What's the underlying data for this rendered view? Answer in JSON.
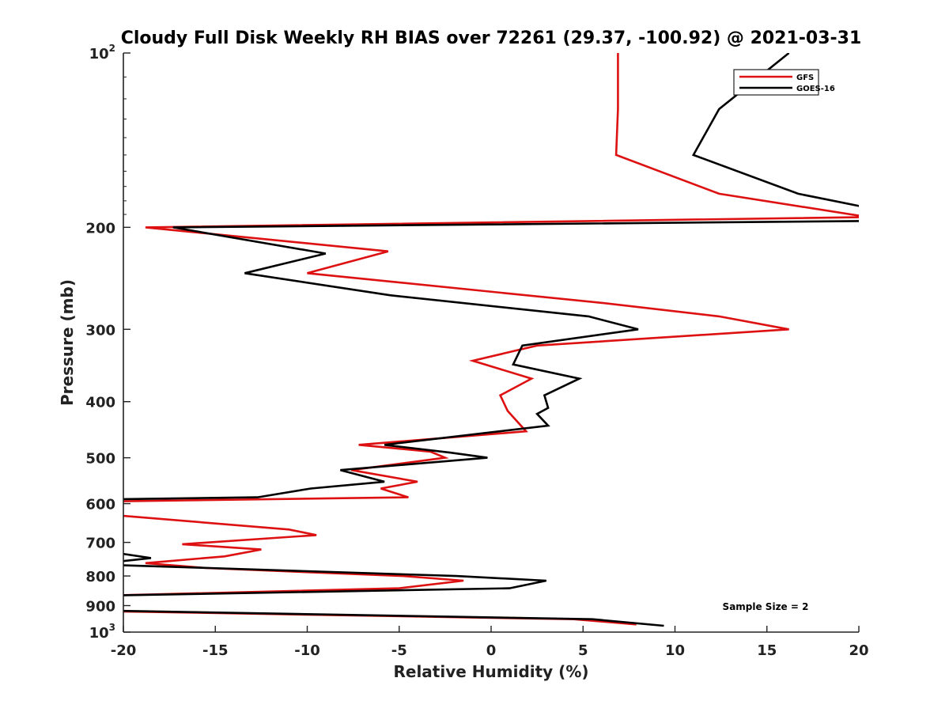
{
  "chart_data": {
    "type": "line",
    "title": "Cloudy Full Disk Weekly RH BIAS over 72261 (29.37, -100.92) @ 2021-03-31",
    "xlabel": "Relative Humidity (%)",
    "ylabel": "Pressure (mb)",
    "xlim": [
      -20,
      20
    ],
    "ylim": [
      100,
      1000
    ],
    "yscale": "log",
    "y_reversed": true,
    "grid": false,
    "legend_position": "top-right",
    "annotation": "Sample Size = 2",
    "x_ticks": [
      {
        "value": -20,
        "label": "-20"
      },
      {
        "value": -15,
        "label": "-15"
      },
      {
        "value": -10,
        "label": "-10"
      },
      {
        "value": -5,
        "label": "-5"
      },
      {
        "value": 0,
        "label": "0"
      },
      {
        "value": 5,
        "label": "5"
      },
      {
        "value": 10,
        "label": "10"
      },
      {
        "value": 15,
        "label": "15"
      },
      {
        "value": 20,
        "label": "20"
      }
    ],
    "y_ticks": [
      {
        "value": 100,
        "base": "10",
        "exp": "2"
      },
      {
        "value": 200,
        "label": "200"
      },
      {
        "value": 300,
        "label": "300"
      },
      {
        "value": 400,
        "label": "400"
      },
      {
        "value": 500,
        "label": "500"
      },
      {
        "value": 600,
        "label": "600"
      },
      {
        "value": 700,
        "label": "700"
      },
      {
        "value": 800,
        "label": "800"
      },
      {
        "value": 900,
        "label": "900"
      },
      {
        "value": 1000,
        "base": "10",
        "exp": "3"
      }
    ],
    "series": [
      {
        "name": "GFS",
        "color": "#dd1111",
        "points": [
          [
            6.9,
            100
          ],
          [
            6.9,
            125
          ],
          [
            6.8,
            150
          ],
          [
            12.4,
            175
          ],
          [
            20.5,
            192
          ],
          [
            -18.8,
            200
          ],
          [
            -5.6,
            220
          ],
          [
            -10.0,
            240
          ],
          [
            6.0,
            270
          ],
          [
            12.4,
            285
          ],
          [
            16.2,
            300
          ],
          [
            2.5,
            320
          ],
          [
            -1.0,
            340
          ],
          [
            2.2,
            365
          ],
          [
            0.5,
            390
          ],
          [
            0.9,
            415
          ],
          [
            1.9,
            450
          ],
          [
            -7.2,
            475
          ],
          [
            -3.3,
            488
          ],
          [
            -2.5,
            500
          ],
          [
            -7.6,
            525
          ],
          [
            -4.0,
            550
          ],
          [
            -6.0,
            565
          ],
          [
            -4.5,
            585
          ],
          [
            -21.0,
            595
          ],
          [
            -21.0,
            625
          ],
          [
            -20.0,
            630
          ],
          [
            -11.0,
            665
          ],
          [
            -9.5,
            680
          ],
          [
            -16.8,
            705
          ],
          [
            -12.5,
            720
          ],
          [
            -14.5,
            740
          ],
          [
            -18.8,
            760
          ],
          [
            -15.5,
            775
          ],
          [
            -4.8,
            800
          ],
          [
            -1.5,
            815
          ],
          [
            -5.0,
            840
          ],
          [
            -21.0,
            865
          ],
          [
            -21.0,
            900
          ],
          [
            -20.0,
            910
          ],
          [
            -21.0,
            915
          ],
          [
            -21.0,
            920
          ],
          [
            4.5,
            950
          ],
          [
            7.9,
            970
          ]
        ]
      },
      {
        "name": "GOES-16",
        "color": "#000000",
        "points": [
          [
            16.2,
            100
          ],
          [
            12.4,
            125
          ],
          [
            11.0,
            150
          ],
          [
            16.7,
            175
          ],
          [
            20.5,
            185
          ],
          [
            20.5,
            195
          ],
          [
            -17.3,
            200
          ],
          [
            -9.0,
            222
          ],
          [
            -13.4,
            240
          ],
          [
            -5.5,
            262
          ],
          [
            5.3,
            285
          ],
          [
            8.0,
            300
          ],
          [
            1.7,
            320
          ],
          [
            1.2,
            345
          ],
          [
            4.8,
            365
          ],
          [
            2.9,
            390
          ],
          [
            3.1,
            410
          ],
          [
            2.5,
            420
          ],
          [
            3.1,
            440
          ],
          [
            -5.8,
            475
          ],
          [
            -2.2,
            490
          ],
          [
            -0.2,
            500
          ],
          [
            -8.2,
            525
          ],
          [
            -5.8,
            550
          ],
          [
            -9.8,
            565
          ],
          [
            -12.7,
            585
          ],
          [
            -21.0,
            590
          ],
          [
            -21.0,
            725
          ],
          [
            -18.5,
            745
          ],
          [
            -21.0,
            760
          ],
          [
            -21.0,
            765
          ],
          [
            -15.3,
            775
          ],
          [
            -1.9,
            800
          ],
          [
            3.0,
            815
          ],
          [
            1.0,
            840
          ],
          [
            -21.0,
            865
          ],
          [
            -21.0,
            900
          ],
          [
            -21.0,
            910
          ],
          [
            -20.0,
            910
          ],
          [
            -21.0,
            918
          ],
          [
            5.5,
            950
          ],
          [
            9.4,
            975
          ]
        ]
      }
    ]
  }
}
